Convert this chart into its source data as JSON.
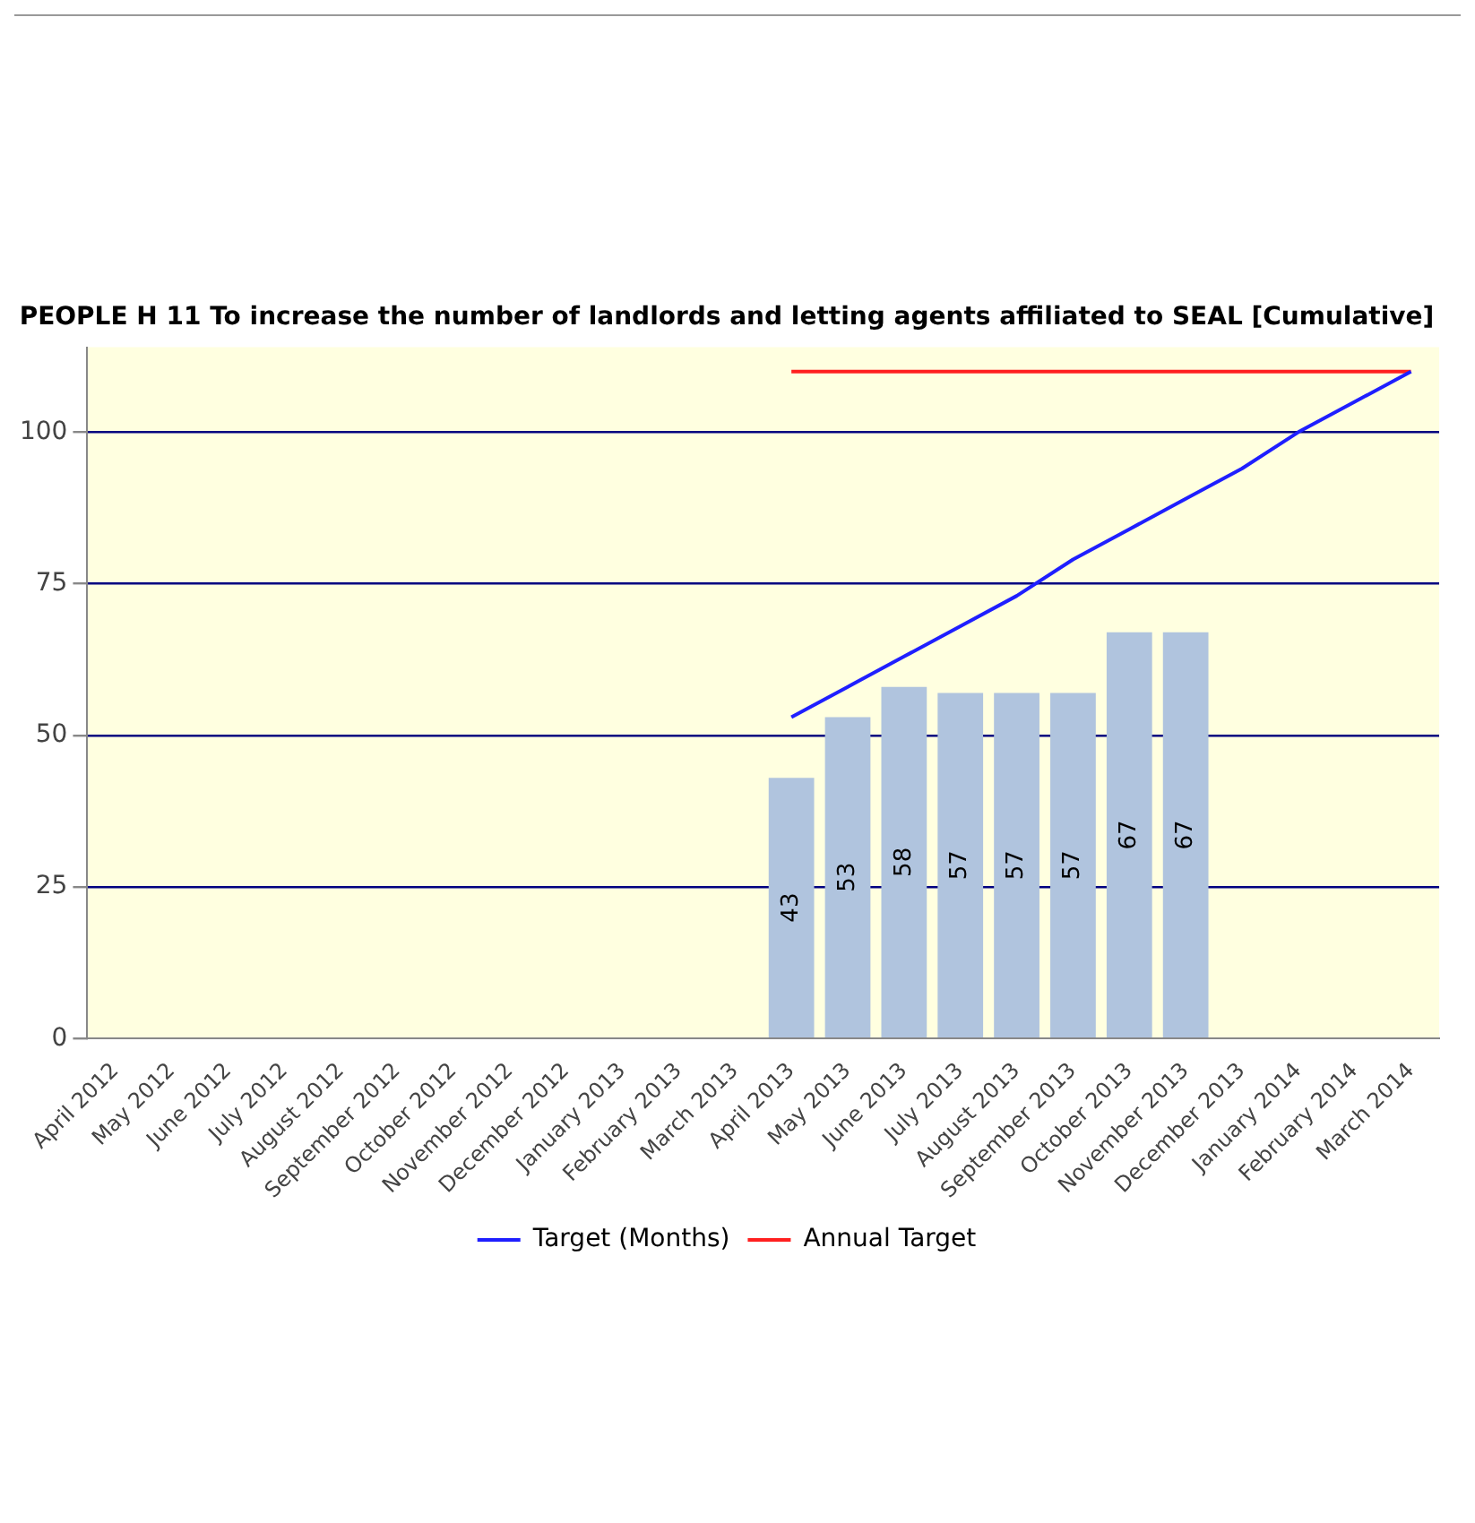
{
  "chart_data": {
    "type": "bar",
    "title": "PEOPLE H 11 To increase the number of landlords and letting agents affiliated to SEAL [Cumulative]",
    "categories": [
      "April 2012",
      "May 2012",
      "June 2012",
      "July 2012",
      "August 2012",
      "September 2012",
      "October 2012",
      "November 2012",
      "December 2012",
      "January 2013",
      "February 2013",
      "March 2013",
      "April 2013",
      "May 2013",
      "June 2013",
      "July 2013",
      "August 2013",
      "September 2013",
      "October 2013",
      "November 2013",
      "December 2013",
      "January 2014",
      "February 2014",
      "March 2014"
    ],
    "series": [
      {
        "color": "#b0c4de",
        "values": [
          null,
          null,
          null,
          null,
          null,
          null,
          null,
          null,
          null,
          null,
          null,
          null,
          43,
          53,
          58,
          57,
          57,
          57,
          67,
          67,
          null,
          null,
          null,
          null
        ],
        "value_labels": [
          null,
          null,
          null,
          null,
          null,
          null,
          null,
          null,
          null,
          null,
          null,
          null,
          "43",
          "53",
          "58",
          "57",
          "57",
          "57",
          "67",
          "67",
          null,
          null,
          null,
          null
        ]
      },
      {
        "type": "line",
        "name": "Target (Months)",
        "color": "#1f1fff",
        "values": [
          null,
          null,
          null,
          null,
          null,
          null,
          null,
          null,
          null,
          null,
          null,
          null,
          53,
          58,
          63,
          68,
          73,
          79,
          84,
          89,
          94,
          100,
          105,
          110
        ]
      },
      {
        "type": "line",
        "name": "Annual Target",
        "color": "#ff2020",
        "values": [
          null,
          null,
          null,
          null,
          null,
          null,
          null,
          null,
          null,
          null,
          null,
          null,
          110,
          110,
          110,
          110,
          110,
          110,
          110,
          110,
          110,
          110,
          110,
          110
        ]
      }
    ],
    "ylim": [
      0,
      114
    ],
    "yticks": [
      0,
      25,
      50,
      75,
      100
    ],
    "grid": "y",
    "legend": "bottom"
  }
}
